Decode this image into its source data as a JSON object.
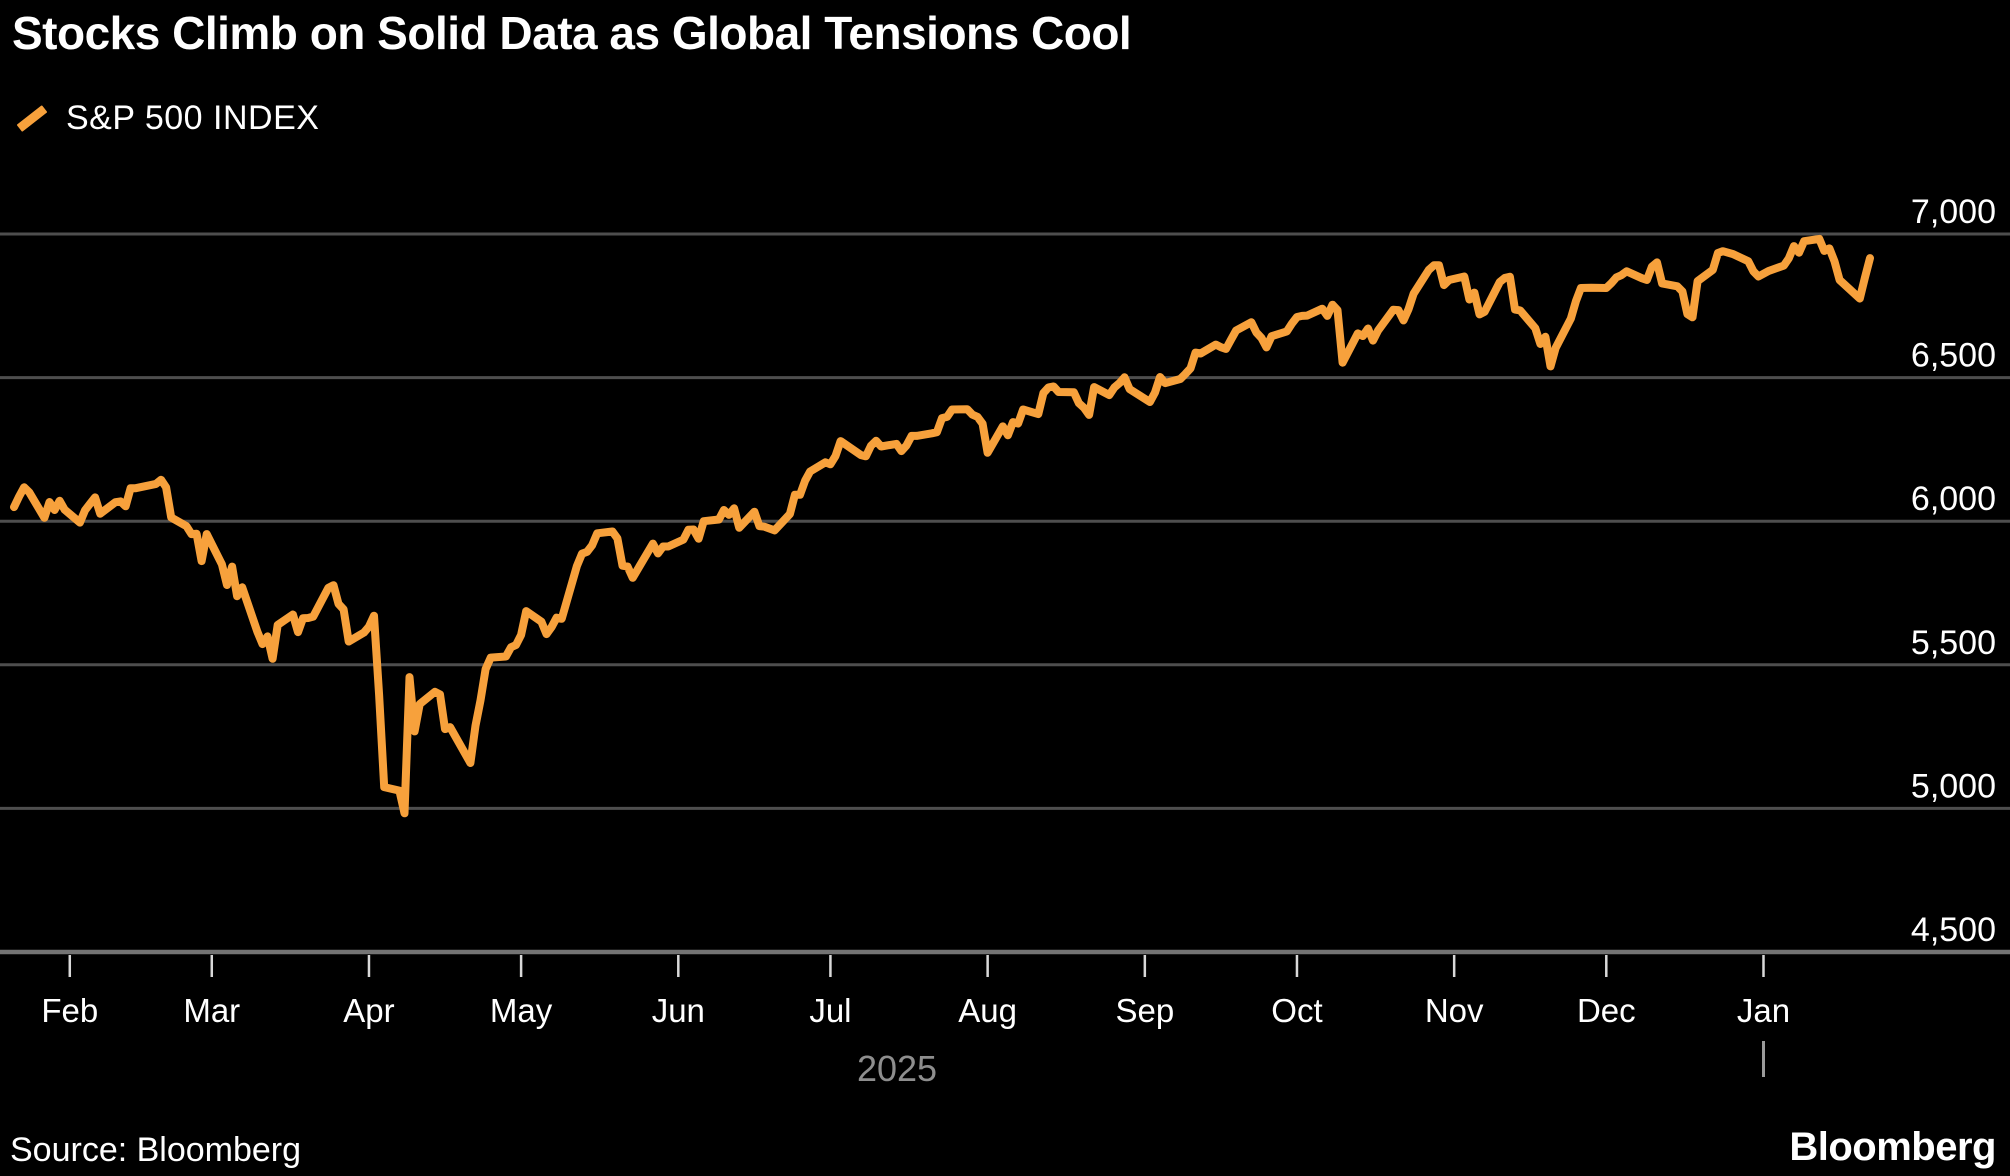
{
  "header": {
    "title": "Stocks Climb on Solid Data as Global Tensions Cool",
    "legend": {
      "label": "S&P 500 INDEX",
      "swatch_color": "#F7A13C"
    }
  },
  "footer": {
    "source": "Source: Bloomberg",
    "brand": "Bloomberg"
  },
  "chart_data": {
    "type": "line",
    "title": "Stocks Climb on Solid Data as Global Tensions Cool",
    "legend_entries": [
      "S&P 500 INDEX"
    ],
    "legend_position": "top-left",
    "grid": true,
    "y_axis": {
      "side": "right",
      "ylim": [
        4500,
        7080
      ],
      "ticks": [
        7000,
        6500,
        6000,
        5500,
        5000,
        4500
      ],
      "tick_labels": [
        "7,000",
        "6,500",
        "6,000",
        "5,500",
        "5,000",
        "4,500"
      ],
      "gridline_values": [
        7000,
        6500,
        6000,
        5500,
        5000
      ]
    },
    "x_axis": {
      "xlim": [
        "2025-01-21",
        "2026-01-22"
      ],
      "ticks": [
        {
          "date": "2025-02-01",
          "label": "Feb"
        },
        {
          "date": "2025-03-01",
          "label": "Mar"
        },
        {
          "date": "2025-04-01",
          "label": "Apr"
        },
        {
          "date": "2025-05-01",
          "label": "May"
        },
        {
          "date": "2025-06-01",
          "label": "Jun"
        },
        {
          "date": "2025-07-01",
          "label": "Jul"
        },
        {
          "date": "2025-08-01",
          "label": "Aug"
        },
        {
          "date": "2025-09-01",
          "label": "Sep"
        },
        {
          "date": "2025-10-01",
          "label": "Oct"
        },
        {
          "date": "2025-11-01",
          "label": "Nov"
        },
        {
          "date": "2025-12-01",
          "label": "Dec"
        },
        {
          "date": "2026-01-01",
          "label": "Jan"
        }
      ],
      "year_label": "2025",
      "year_boundary_date": "2026-01-01"
    },
    "colors": {
      "background": "#000000",
      "line": "#F7A13C",
      "gridline": "#4E4E4E",
      "axis_line": "#747474",
      "tick": "#D9D9D9",
      "month_label": "#FFFFFF",
      "year_label": "#8E8E8E",
      "year_tick": "#9B9B9B",
      "value_label": "#FFFFFF"
    },
    "series": [
      {
        "name": "S&P 500 INDEX",
        "color": "#F7A13C",
        "points": [
          [
            "2025-01-21",
            6049
          ],
          [
            "2025-01-22",
            6086
          ],
          [
            "2025-01-23",
            6118
          ],
          [
            "2025-01-24",
            6101
          ],
          [
            "2025-01-27",
            6012
          ],
          [
            "2025-01-28",
            6067
          ],
          [
            "2025-01-29",
            6039
          ],
          [
            "2025-01-30",
            6071
          ],
          [
            "2025-01-31",
            6040
          ],
          [
            "2025-02-03",
            5995
          ],
          [
            "2025-02-04",
            6038
          ],
          [
            "2025-02-05",
            6061
          ],
          [
            "2025-02-06",
            6083
          ],
          [
            "2025-02-07",
            6026
          ],
          [
            "2025-02-10",
            6066
          ],
          [
            "2025-02-11",
            6069
          ],
          [
            "2025-02-12",
            6052
          ],
          [
            "2025-02-13",
            6115
          ],
          [
            "2025-02-14",
            6115
          ],
          [
            "2025-02-18",
            6130
          ],
          [
            "2025-02-19",
            6144
          ],
          [
            "2025-02-20",
            6118
          ],
          [
            "2025-02-21",
            6013
          ],
          [
            "2025-02-24",
            5983
          ],
          [
            "2025-02-25",
            5955
          ],
          [
            "2025-02-26",
            5956
          ],
          [
            "2025-02-27",
            5861
          ],
          [
            "2025-02-28",
            5955
          ],
          [
            "2025-03-03",
            5850
          ],
          [
            "2025-03-04",
            5778
          ],
          [
            "2025-03-05",
            5842
          ],
          [
            "2025-03-06",
            5739
          ],
          [
            "2025-03-07",
            5770
          ],
          [
            "2025-03-10",
            5615
          ],
          [
            "2025-03-11",
            5572
          ],
          [
            "2025-03-12",
            5599
          ],
          [
            "2025-03-13",
            5521
          ],
          [
            "2025-03-14",
            5639
          ],
          [
            "2025-03-17",
            5675
          ],
          [
            "2025-03-18",
            5614
          ],
          [
            "2025-03-19",
            5662
          ],
          [
            "2025-03-20",
            5663
          ],
          [
            "2025-03-21",
            5668
          ],
          [
            "2025-03-24",
            5768
          ],
          [
            "2025-03-25",
            5777
          ],
          [
            "2025-03-26",
            5712
          ],
          [
            "2025-03-27",
            5693
          ],
          [
            "2025-03-28",
            5581
          ],
          [
            "2025-03-31",
            5612
          ],
          [
            "2025-04-01",
            5633
          ],
          [
            "2025-04-02",
            5671
          ],
          [
            "2025-04-03",
            5396
          ],
          [
            "2025-04-04",
            5074
          ],
          [
            "2025-04-07",
            5062
          ],
          [
            "2025-04-08",
            4983
          ],
          [
            "2025-04-09",
            5457
          ],
          [
            "2025-04-10",
            5268
          ],
          [
            "2025-04-11",
            5363
          ],
          [
            "2025-04-14",
            5406
          ],
          [
            "2025-04-15",
            5397
          ],
          [
            "2025-04-16",
            5276
          ],
          [
            "2025-04-17",
            5283
          ],
          [
            "2025-04-21",
            5158
          ],
          [
            "2025-04-22",
            5288
          ],
          [
            "2025-04-23",
            5376
          ],
          [
            "2025-04-24",
            5485
          ],
          [
            "2025-04-25",
            5525
          ],
          [
            "2025-04-28",
            5529
          ],
          [
            "2025-04-29",
            5561
          ],
          [
            "2025-04-30",
            5569
          ],
          [
            "2025-05-01",
            5604
          ],
          [
            "2025-05-02",
            5687
          ],
          [
            "2025-05-05",
            5650
          ],
          [
            "2025-05-06",
            5607
          ],
          [
            "2025-05-07",
            5631
          ],
          [
            "2025-05-08",
            5664
          ],
          [
            "2025-05-09",
            5660
          ],
          [
            "2025-05-12",
            5844
          ],
          [
            "2025-05-13",
            5887
          ],
          [
            "2025-05-14",
            5893
          ],
          [
            "2025-05-15",
            5916
          ],
          [
            "2025-05-16",
            5958
          ],
          [
            "2025-05-19",
            5964
          ],
          [
            "2025-05-20",
            5940
          ],
          [
            "2025-05-21",
            5845
          ],
          [
            "2025-05-22",
            5842
          ],
          [
            "2025-05-23",
            5803
          ],
          [
            "2025-05-27",
            5922
          ],
          [
            "2025-05-28",
            5888
          ],
          [
            "2025-05-29",
            5912
          ],
          [
            "2025-05-30",
            5912
          ],
          [
            "2025-06-02",
            5936
          ],
          [
            "2025-06-03",
            5970
          ],
          [
            "2025-06-04",
            5971
          ],
          [
            "2025-06-05",
            5939
          ],
          [
            "2025-06-06",
            6000
          ],
          [
            "2025-06-09",
            6006
          ],
          [
            "2025-06-10",
            6039
          ],
          [
            "2025-06-11",
            6022
          ],
          [
            "2025-06-12",
            6045
          ],
          [
            "2025-06-13",
            5977
          ],
          [
            "2025-06-16",
            6033
          ],
          [
            "2025-06-17",
            5983
          ],
          [
            "2025-06-18",
            5981
          ],
          [
            "2025-06-20",
            5968
          ],
          [
            "2025-06-23",
            6025
          ],
          [
            "2025-06-24",
            6092
          ],
          [
            "2025-06-25",
            6092
          ],
          [
            "2025-06-26",
            6141
          ],
          [
            "2025-06-27",
            6173
          ],
          [
            "2025-06-30",
            6205
          ],
          [
            "2025-07-01",
            6198
          ],
          [
            "2025-07-02",
            6227
          ],
          [
            "2025-07-03",
            6279
          ],
          [
            "2025-07-07",
            6230
          ],
          [
            "2025-07-08",
            6226
          ],
          [
            "2025-07-09",
            6263
          ],
          [
            "2025-07-10",
            6280
          ],
          [
            "2025-07-11",
            6260
          ],
          [
            "2025-07-14",
            6269
          ],
          [
            "2025-07-15",
            6244
          ],
          [
            "2025-07-16",
            6264
          ],
          [
            "2025-07-17",
            6297
          ],
          [
            "2025-07-18",
            6297
          ],
          [
            "2025-07-21",
            6306
          ],
          [
            "2025-07-22",
            6310
          ],
          [
            "2025-07-23",
            6359
          ],
          [
            "2025-07-24",
            6363
          ],
          [
            "2025-07-25",
            6389
          ],
          [
            "2025-07-28",
            6390
          ],
          [
            "2025-07-29",
            6371
          ],
          [
            "2025-07-30",
            6363
          ],
          [
            "2025-07-31",
            6339
          ],
          [
            "2025-08-01",
            6238
          ],
          [
            "2025-08-04",
            6330
          ],
          [
            "2025-08-05",
            6299
          ],
          [
            "2025-08-06",
            6345
          ],
          [
            "2025-08-07",
            6340
          ],
          [
            "2025-08-08",
            6389
          ],
          [
            "2025-08-11",
            6373
          ],
          [
            "2025-08-12",
            6446
          ],
          [
            "2025-08-13",
            6466
          ],
          [
            "2025-08-14",
            6469
          ],
          [
            "2025-08-15",
            6450
          ],
          [
            "2025-08-18",
            6449
          ],
          [
            "2025-08-19",
            6411
          ],
          [
            "2025-08-20",
            6395
          ],
          [
            "2025-08-21",
            6370
          ],
          [
            "2025-08-22",
            6467
          ],
          [
            "2025-08-25",
            6439
          ],
          [
            "2025-08-26",
            6466
          ],
          [
            "2025-08-27",
            6481
          ],
          [
            "2025-08-28",
            6501
          ],
          [
            "2025-08-29",
            6460
          ],
          [
            "2025-09-02",
            6415
          ],
          [
            "2025-09-03",
            6448
          ],
          [
            "2025-09-04",
            6502
          ],
          [
            "2025-09-05",
            6481
          ],
          [
            "2025-09-08",
            6495
          ],
          [
            "2025-09-09",
            6513
          ],
          [
            "2025-09-10",
            6532
          ],
          [
            "2025-09-11",
            6587
          ],
          [
            "2025-09-12",
            6584
          ],
          [
            "2025-09-15",
            6615
          ],
          [
            "2025-09-16",
            6606
          ],
          [
            "2025-09-17",
            6600
          ],
          [
            "2025-09-18",
            6632
          ],
          [
            "2025-09-19",
            6664
          ],
          [
            "2025-09-22",
            6693
          ],
          [
            "2025-09-23",
            6657
          ],
          [
            "2025-09-24",
            6638
          ],
          [
            "2025-09-25",
            6605
          ],
          [
            "2025-09-26",
            6644
          ],
          [
            "2025-09-29",
            6661
          ],
          [
            "2025-09-30",
            6688
          ],
          [
            "2025-10-01",
            6711
          ],
          [
            "2025-10-02",
            6715
          ],
          [
            "2025-10-03",
            6716
          ],
          [
            "2025-10-06",
            6740
          ],
          [
            "2025-10-07",
            6715
          ],
          [
            "2025-10-08",
            6754
          ],
          [
            "2025-10-09",
            6735
          ],
          [
            "2025-10-10",
            6552
          ],
          [
            "2025-10-13",
            6654
          ],
          [
            "2025-10-14",
            6645
          ],
          [
            "2025-10-15",
            6671
          ],
          [
            "2025-10-16",
            6629
          ],
          [
            "2025-10-17",
            6664
          ],
          [
            "2025-10-20",
            6736
          ],
          [
            "2025-10-21",
            6735
          ],
          [
            "2025-10-22",
            6699
          ],
          [
            "2025-10-23",
            6738
          ],
          [
            "2025-10-24",
            6792
          ],
          [
            "2025-10-27",
            6875
          ],
          [
            "2025-10-28",
            6891
          ],
          [
            "2025-10-29",
            6891
          ],
          [
            "2025-10-30",
            6822
          ],
          [
            "2025-10-31",
            6840
          ],
          [
            "2025-11-03",
            6852
          ],
          [
            "2025-11-04",
            6772
          ],
          [
            "2025-11-05",
            6796
          ],
          [
            "2025-11-06",
            6720
          ],
          [
            "2025-11-07",
            6729
          ],
          [
            "2025-11-10",
            6833
          ],
          [
            "2025-11-11",
            6847
          ],
          [
            "2025-11-12",
            6851
          ],
          [
            "2025-11-13",
            6737
          ],
          [
            "2025-11-14",
            6734
          ],
          [
            "2025-11-17",
            6672
          ],
          [
            "2025-11-18",
            6617
          ],
          [
            "2025-11-19",
            6642
          ],
          [
            "2025-11-20",
            6539
          ],
          [
            "2025-11-21",
            6603
          ],
          [
            "2025-11-24",
            6705
          ],
          [
            "2025-11-25",
            6766
          ],
          [
            "2025-11-26",
            6812
          ],
          [
            "2025-11-28",
            6813
          ],
          [
            "2025-12-01",
            6812
          ],
          [
            "2025-12-02",
            6829
          ],
          [
            "2025-12-03",
            6849
          ],
          [
            "2025-12-04",
            6857
          ],
          [
            "2025-12-05",
            6870
          ],
          [
            "2025-12-08",
            6846
          ],
          [
            "2025-12-09",
            6840
          ],
          [
            "2025-12-10",
            6886
          ],
          [
            "2025-12-11",
            6901
          ],
          [
            "2025-12-12",
            6828
          ],
          [
            "2025-12-15",
            6818
          ],
          [
            "2025-12-16",
            6800
          ],
          [
            "2025-12-17",
            6721
          ],
          [
            "2025-12-18",
            6710
          ],
          [
            "2025-12-19",
            6836
          ],
          [
            "2025-12-22",
            6875
          ],
          [
            "2025-12-23",
            6934
          ],
          [
            "2025-12-24",
            6940
          ],
          [
            "2025-12-26",
            6930
          ],
          [
            "2025-12-29",
            6905
          ],
          [
            "2025-12-30",
            6870
          ],
          [
            "2025-12-31",
            6852
          ],
          [
            "2026-01-02",
            6871
          ],
          [
            "2026-01-05",
            6890
          ],
          [
            "2026-01-06",
            6915
          ],
          [
            "2026-01-07",
            6958
          ],
          [
            "2026-01-08",
            6935
          ],
          [
            "2026-01-09",
            6975
          ],
          [
            "2026-01-12",
            6983
          ],
          [
            "2026-01-13",
            6941
          ],
          [
            "2026-01-14",
            6950
          ],
          [
            "2026-01-15",
            6905
          ],
          [
            "2026-01-16",
            6840
          ],
          [
            "2026-01-20",
            6775
          ],
          [
            "2026-01-21",
            6848
          ],
          [
            "2026-01-22",
            6916
          ]
        ]
      }
    ]
  }
}
